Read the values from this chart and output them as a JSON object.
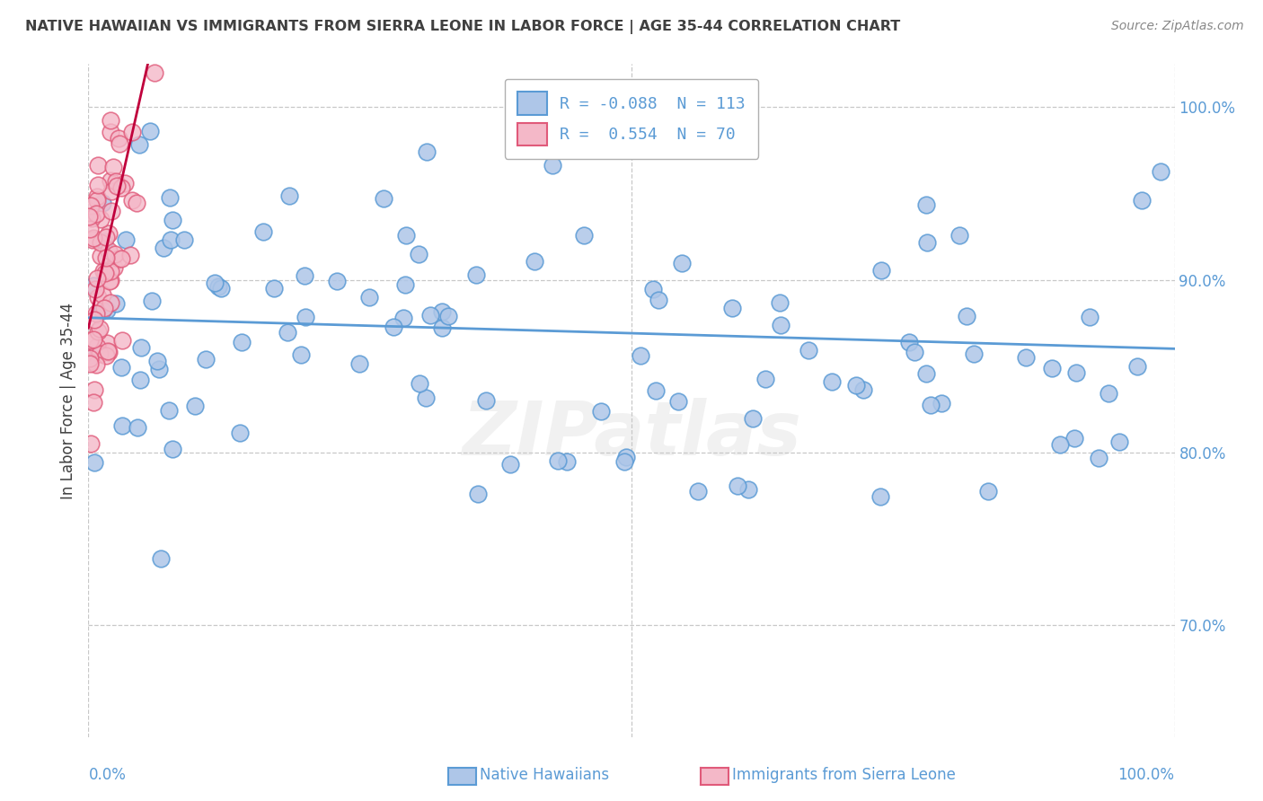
{
  "title": "NATIVE HAWAIIAN VS IMMIGRANTS FROM SIERRA LEONE IN LABOR FORCE | AGE 35-44 CORRELATION CHART",
  "source": "Source: ZipAtlas.com",
  "ylabel": "In Labor Force | Age 35-44",
  "y_ticks": [
    0.7,
    0.8,
    0.9,
    1.0
  ],
  "y_tick_labels": [
    "70.0%",
    "80.0%",
    "90.0%",
    "100.0%"
  ],
  "xlim": [
    0.0,
    1.0
  ],
  "ylim": [
    0.635,
    1.025
  ],
  "blue_color": "#aec6e8",
  "blue_edge": "#5b9bd5",
  "pink_color": "#f4b8c8",
  "pink_edge": "#e05a7a",
  "trend_blue": "#5b9bd5",
  "trend_pink": "#c0003c",
  "legend_blue_label": "R = -0.088  N = 113",
  "legend_pink_label": "R =  0.554  N = 70",
  "watermark": "ZIPatlas",
  "blue_R": -0.088,
  "blue_N": 113,
  "pink_R": 0.554,
  "pink_N": 70,
  "blue_intercept": 0.878,
  "blue_slope": -0.018,
  "pink_intercept": 0.872,
  "pink_slope": 2.8,
  "title_color": "#404040",
  "axis_label_color": "#5b9bd5",
  "tick_color": "#5b9bd5",
  "grid_color": "#c8c8c8",
  "background_color": "#ffffff"
}
